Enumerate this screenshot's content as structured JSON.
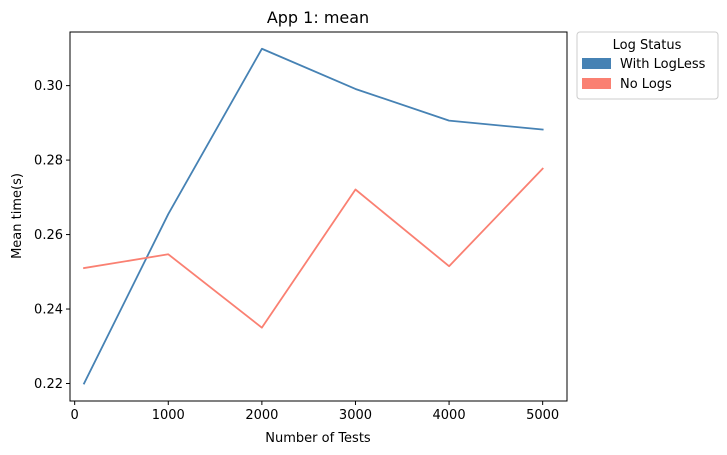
{
  "chart_data": {
    "type": "line",
    "title": "App 1: mean",
    "xlabel": "Number of Tests",
    "ylabel": "Mean time(s)",
    "xlim": [
      -50,
      5260
    ],
    "ylim": [
      0.2153,
      0.3144
    ],
    "xticks": [
      0,
      1000,
      2000,
      3000,
      4000,
      5000
    ],
    "xtick_labels": [
      "0",
      "1000",
      "2000",
      "3000",
      "4000",
      "5000"
    ],
    "yticks": [
      0.22,
      0.24,
      0.26,
      0.28,
      0.3
    ],
    "ytick_labels": [
      "0.22",
      "0.24",
      "0.26",
      "0.28",
      "0.30"
    ],
    "x": [
      100,
      1000,
      2000,
      3000,
      4000,
      5000
    ],
    "series": [
      {
        "name": "With LogLess",
        "color": "#4682b4",
        "values": [
          0.22,
          0.2655,
          0.3099,
          0.2991,
          0.2906,
          0.2882
        ]
      },
      {
        "name": "No Logs",
        "color": "#fa8072",
        "values": [
          0.251,
          0.2547,
          0.235,
          0.2721,
          0.2515,
          0.2777
        ]
      }
    ],
    "grid": false,
    "legend": {
      "title": "Log Status",
      "placement": "outside-top-right"
    }
  }
}
